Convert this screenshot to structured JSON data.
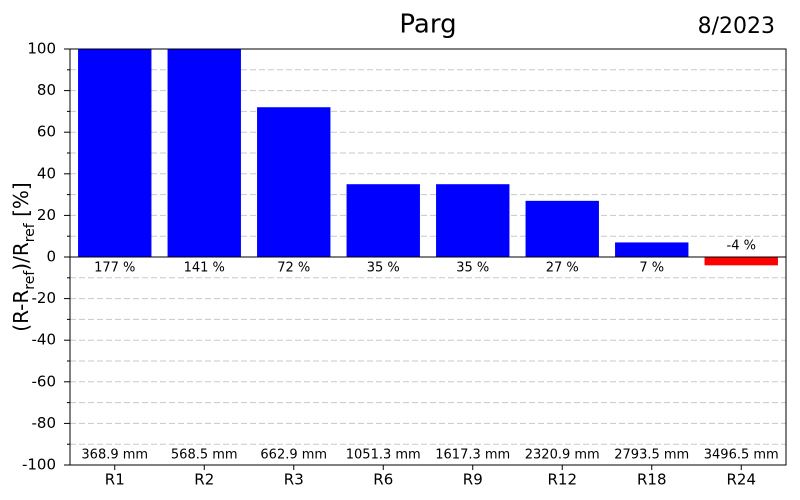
{
  "chart_data": {
    "type": "bar",
    "title": "Parg",
    "date": "8/2023",
    "y_label_parts": [
      "(R-R",
      "ref",
      ")/R",
      "ref",
      " [%]"
    ],
    "categories": [
      "R1",
      "R2",
      "R3",
      "R6",
      "R9",
      "R12",
      "R18",
      "R24"
    ],
    "values": [
      177,
      141,
      72,
      35,
      35,
      27,
      7,
      -4
    ],
    "value_labels": [
      "177 %",
      "141 %",
      "72 %",
      "35 %",
      "35 %",
      "27 %",
      "7 %",
      "-4 %"
    ],
    "reference_labels": [
      "368.9 mm",
      "568.5 mm",
      "662.9 mm",
      "1051.3 mm",
      "1617.3 mm",
      "2320.9 mm",
      "2793.5 mm",
      "3496.5 mm"
    ],
    "colors": [
      "#0000ff",
      "#0000ff",
      "#0000ff",
      "#0000ff",
      "#0000ff",
      "#0000ff",
      "#0000ff",
      "#ff0000"
    ],
    "ylim": [
      -100,
      100
    ],
    "yticks": [
      -100,
      -80,
      -60,
      -40,
      -20,
      0,
      20,
      40,
      60,
      80,
      100
    ],
    "minor_yticks": [
      -90,
      -70,
      -50,
      -30,
      -10,
      10,
      30,
      50,
      70,
      90
    ],
    "grid": true
  }
}
